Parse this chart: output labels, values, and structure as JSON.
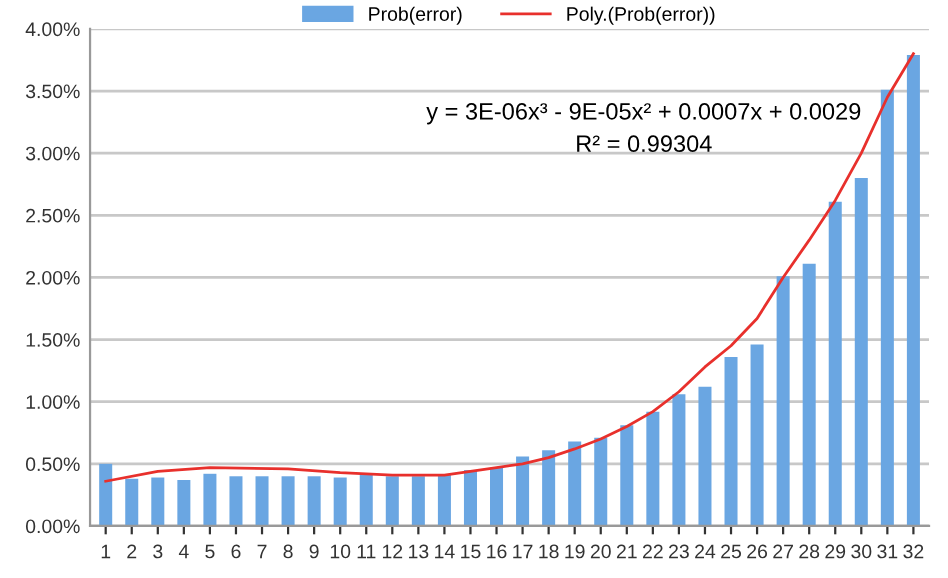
{
  "chart_data": {
    "type": "bar",
    "categories": [
      "1",
      "2",
      "3",
      "4",
      "5",
      "6",
      "7",
      "8",
      "9",
      "10",
      "11",
      "12",
      "13",
      "14",
      "15",
      "16",
      "17",
      "18",
      "19",
      "20",
      "21",
      "22",
      "23",
      "24",
      "25",
      "26",
      "27",
      "28",
      "29",
      "30",
      "31",
      "32"
    ],
    "series": [
      {
        "name": "Prob(error)",
        "color": "#6aa6e2",
        "values": [
          0.005,
          0.0038,
          0.0039,
          0.0037,
          0.0042,
          0.004,
          0.004,
          0.004,
          0.004,
          0.0039,
          0.0041,
          0.004,
          0.004,
          0.0041,
          0.0045,
          0.0047,
          0.0056,
          0.0061,
          0.0068,
          0.0071,
          0.0081,
          0.0092,
          0.0106,
          0.0112,
          0.0136,
          0.0146,
          0.0201,
          0.0211,
          0.0261,
          0.028,
          0.0351,
          0.0379
        ]
      },
      {
        "name": "Poly.(Prob(error))",
        "type": "line",
        "color": "#e8302c",
        "x": [
          "1",
          "3",
          "5",
          "8",
          "10",
          "12",
          "14",
          "15",
          "16",
          "17",
          "18",
          "19",
          "20",
          "21",
          "22",
          "23",
          "24",
          "25",
          "26",
          "27",
          "28",
          "29",
          "30",
          "31",
          "32"
        ],
        "values": [
          0.0036,
          0.0044,
          0.0047,
          0.0046,
          0.0043,
          0.0041,
          0.0041,
          0.0044,
          0.0047,
          0.005,
          0.0055,
          0.0062,
          0.007,
          0.008,
          0.0092,
          0.0108,
          0.0128,
          0.0145,
          0.0167,
          0.02,
          0.023,
          0.0262,
          0.03,
          0.0345,
          0.038
        ]
      }
    ],
    "ylim": [
      0,
      0.04
    ],
    "yticks": [
      {
        "value": 0,
        "label": "0.00%"
      },
      {
        "value": 0.005,
        "label": "0.50%"
      },
      {
        "value": 0.01,
        "label": "1.00%"
      },
      {
        "value": 0.015,
        "label": "1.50%"
      },
      {
        "value": 0.02,
        "label": "2.00%"
      },
      {
        "value": 0.025,
        "label": "2.50%"
      },
      {
        "value": 0.03,
        "label": "3.00%"
      },
      {
        "value": 0.035,
        "label": "3.50%"
      },
      {
        "value": 0.04,
        "label": "4.00%"
      }
    ],
    "grid": "y",
    "legend": "top",
    "annotations": [
      "y = 3E-06x³ - 9E-05x² + 0.0007x + 0.0029",
      "R² = 0.99304"
    ]
  }
}
